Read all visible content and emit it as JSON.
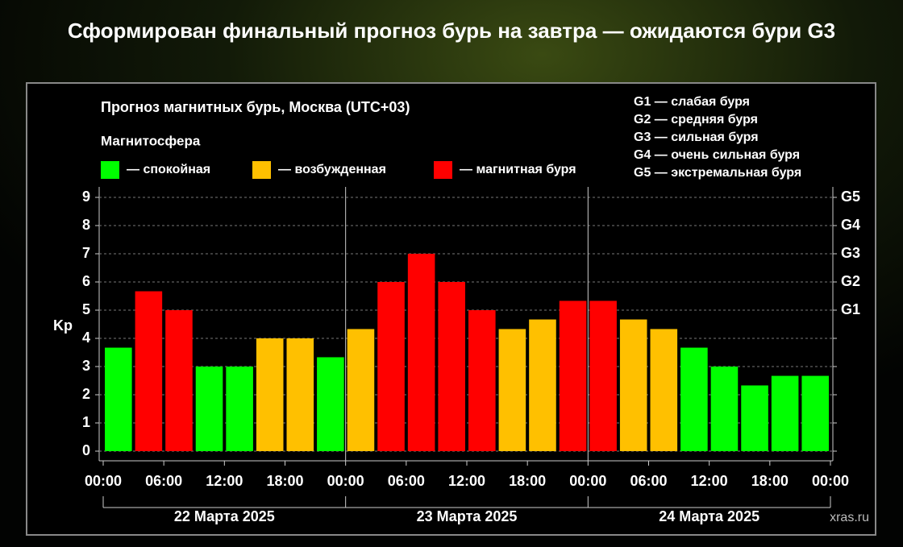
{
  "chart_data": {
    "type": "bar",
    "headline": "Сформирован финальный прогноз бурь на завтра — ожидаются бури G3",
    "title": "Прогноз магнитных бурь, Москва (UTC+03)",
    "subtitle": "Магнитосфера",
    "ylabel": "Kp",
    "x": [
      0,
      3,
      6,
      9,
      12,
      15,
      18,
      21,
      24,
      27,
      30,
      33,
      36,
      39,
      42,
      45,
      48,
      51,
      54,
      57,
      60,
      63,
      66,
      69
    ],
    "xlim": [
      0,
      72
    ],
    "xticks": [
      {
        "value": 0,
        "label": "00:00"
      },
      {
        "value": 6,
        "label": "06:00"
      },
      {
        "value": 12,
        "label": "12:00"
      },
      {
        "value": 18,
        "label": "18:00"
      },
      {
        "value": 24,
        "label": "00:00"
      },
      {
        "value": 30,
        "label": "06:00"
      },
      {
        "value": 36,
        "label": "12:00"
      },
      {
        "value": 42,
        "label": "18:00"
      },
      {
        "value": 48,
        "label": "00:00"
      },
      {
        "value": 54,
        "label": "06:00"
      },
      {
        "value": 60,
        "label": "12:00"
      },
      {
        "value": 66,
        "label": "18:00"
      },
      {
        "value": 72,
        "label": "00:00"
      }
    ],
    "days": [
      "22 Марта 2025",
      "23 Марта 2025",
      "24 Марта 2025"
    ],
    "ylim": [
      0,
      9
    ],
    "yticks": [
      0,
      1,
      2,
      3,
      4,
      5,
      6,
      7,
      8,
      9
    ],
    "y2lim": [
      0,
      9
    ],
    "y2ticks": [
      {
        "value": 5,
        "label": "G1"
      },
      {
        "value": 6,
        "label": "G2"
      },
      {
        "value": 7,
        "label": "G3"
      },
      {
        "value": 8,
        "label": "G4"
      },
      {
        "value": 9,
        "label": "G5"
      }
    ],
    "grid": true,
    "series": [
      {
        "name": "— спокойная",
        "color": "#00ff00",
        "values": [
          3.67,
          null,
          null,
          3,
          3,
          null,
          null,
          3.33,
          null,
          null,
          null,
          null,
          null,
          null,
          null,
          null,
          null,
          null,
          null,
          3.67,
          3,
          2.33,
          2.67,
          2.67
        ]
      },
      {
        "name": "— возбужденная",
        "color": "#ffc000",
        "values": [
          null,
          null,
          null,
          null,
          null,
          4,
          4,
          null,
          4.33,
          null,
          null,
          null,
          null,
          4.33,
          4.67,
          null,
          null,
          4.67,
          4.33,
          null,
          null,
          null,
          null,
          null
        ]
      },
      {
        "name": "— магнитная буря",
        "color": "#ff0000",
        "values": [
          null,
          5.67,
          5,
          null,
          null,
          null,
          null,
          null,
          null,
          6,
          7,
          6,
          5,
          null,
          null,
          5.33,
          5.33,
          null,
          null,
          null,
          null,
          null,
          null,
          null
        ]
      }
    ],
    "scale_legend": [
      "G1 — слабая буря",
      "G2 — средняя буря",
      "G3 — сильная буря",
      "G4 — очень сильная буря",
      "G5 — экстремальная буря"
    ],
    "watermark": "xras.ru"
  }
}
